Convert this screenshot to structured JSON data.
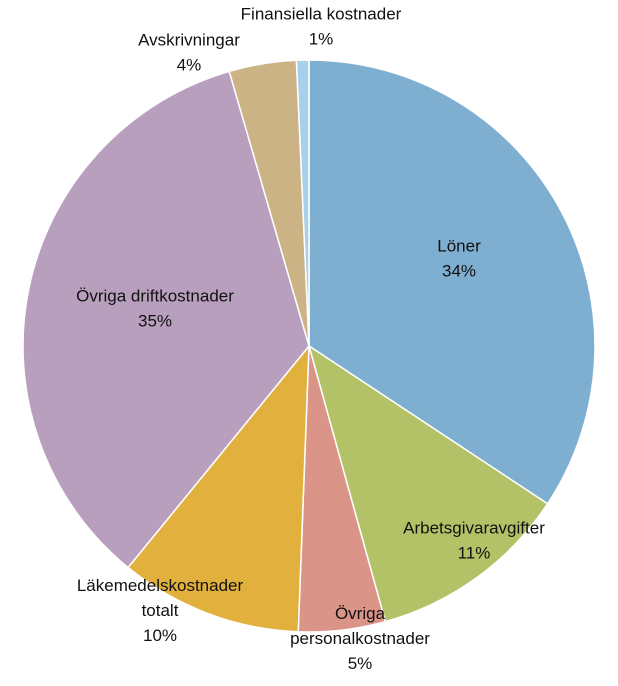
{
  "chart_data": {
    "type": "pie",
    "title": "",
    "slices": [
      {
        "label": [
          "Löner"
        ],
        "percent_label": "34%",
        "value": 34.3,
        "color": "#7eafd0"
      },
      {
        "label": [
          "Arbetsgivaravgifter"
        ],
        "percent_label": "11%",
        "value": 11.4,
        "color": "#b3c266"
      },
      {
        "label": [
          "Övriga",
          "personalkostnader"
        ],
        "percent_label": "5%",
        "value": 4.9,
        "color": "#da9488"
      },
      {
        "label": [
          "Läkemedelskostnader",
          "totalt"
        ],
        "percent_label": "10%",
        "value": 10.3,
        "color": "#e2b03d"
      },
      {
        "label": [
          "Övriga driftkostnader"
        ],
        "percent_label": "35%",
        "value": 34.6,
        "color": "#b99fbe"
      },
      {
        "label": [
          "Avskrivningar"
        ],
        "percent_label": "4%",
        "value": 3.8,
        "color": "#cbb386"
      },
      {
        "label": [
          "Finansiella kostnader"
        ],
        "percent_label": "1%",
        "value": 0.7,
        "color": "#a8d0ea"
      }
    ]
  }
}
